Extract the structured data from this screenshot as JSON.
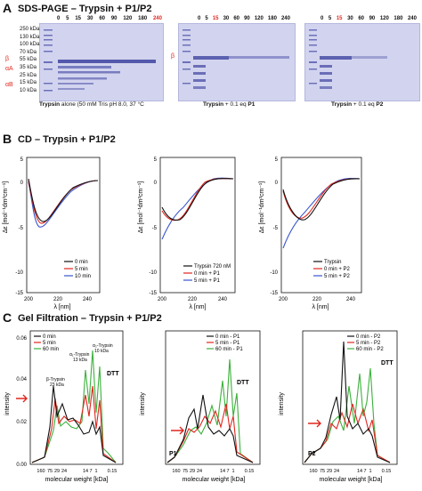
{
  "panelA": {
    "letter": "A",
    "title": "SDS-PAGE – Trypsin + P1/P2",
    "gel1": {
      "lanes": [
        "0",
        "5",
        "15",
        "30",
        "60",
        "90",
        "120",
        "180",
        "240"
      ],
      "highlight_lane": "240",
      "marker_kda": [
        "250 kDa",
        "130 kDa",
        "100 kDa",
        "70 kDa",
        "55 kDa",
        "35 kDa",
        "25 kDa",
        "15 kDa",
        "10 kDa"
      ],
      "band_labels": [
        "β",
        "αA",
        "αB"
      ],
      "caption_bold": "Trypsin",
      "caption_rest": " alone (50 mM Tris pH 8.0, 37 °C"
    },
    "gel2": {
      "lanes": [
        "0",
        "5",
        "15",
        "30",
        "60",
        "90",
        "120",
        "180",
        "240"
      ],
      "highlight_lane": "15",
      "band_label": "β",
      "caption_bold": "Trypsin",
      "caption_rest": " + 0.1 eq ",
      "caption_tail": "P1"
    },
    "gel3": {
      "lanes": [
        "0",
        "5",
        "15",
        "30",
        "60",
        "90",
        "120",
        "180",
        "240"
      ],
      "highlight_lane": "15",
      "caption_bold": "Trypsin",
      "caption_rest": " + 0.1 eq ",
      "caption_tail": "P2"
    }
  },
  "panelB": {
    "letter": "B",
    "title": "CD – Trypsin + P1/P2",
    "ylabel": "Δε [mol⁻¹dm³cm⁻¹]",
    "xlabel": "λ [nm]",
    "y_ticks": [
      "5",
      "0",
      "-5",
      "-10",
      "-15"
    ],
    "x_ticks": [
      "200",
      "220",
      "240"
    ],
    "plot1_legend": [
      "0 min",
      "5 min",
      "10 min"
    ],
    "plot2_legend": [
      "Trypsin 720 nM",
      "0 min + P1",
      "5 min + P1"
    ],
    "plot3_legend": [
      "Trypsin",
      "0 min + P2",
      "5 min + P2"
    ]
  },
  "panelC": {
    "letter": "C",
    "title": "Gel Filtration – Trypsin + P1/P2",
    "ylabel": "intensity",
    "xlabel": "molecular weight [kDa]",
    "y_ticks": [
      "0.00",
      "0.02",
      "0.04",
      "0.06"
    ],
    "x_ticks": [
      "160",
      "75",
      "29",
      "24",
      "14",
      "7",
      "1",
      "0.15"
    ],
    "plot1_legend": [
      "0 min",
      "5 min",
      "60 min"
    ],
    "plot2_legend": [
      "0 min - P1",
      "5 min - P1",
      "60 min - P1"
    ],
    "plot3_legend": [
      "0 min - P2",
      "5 min - P2",
      "60 min - P2"
    ],
    "annotations": {
      "beta": "β-Trypsin",
      "beta_kda": "23 kDa",
      "alpha1": "α₁-Trypsin",
      "alpha1_kda": "13 kDa",
      "alpha2": "α₂-Trypsin",
      "alpha2_kda": "10 kDa",
      "dtt": "DTT",
      "p1": "P1",
      "p2": "P2"
    }
  },
  "colors": {
    "black": "#111111",
    "red": "#e0261f",
    "green": "#3bb03b",
    "blue": "#3a55d0",
    "gel_bg": "#d2d4ef",
    "band": "#4b50a8",
    "highlight": "#e0261f"
  }
}
